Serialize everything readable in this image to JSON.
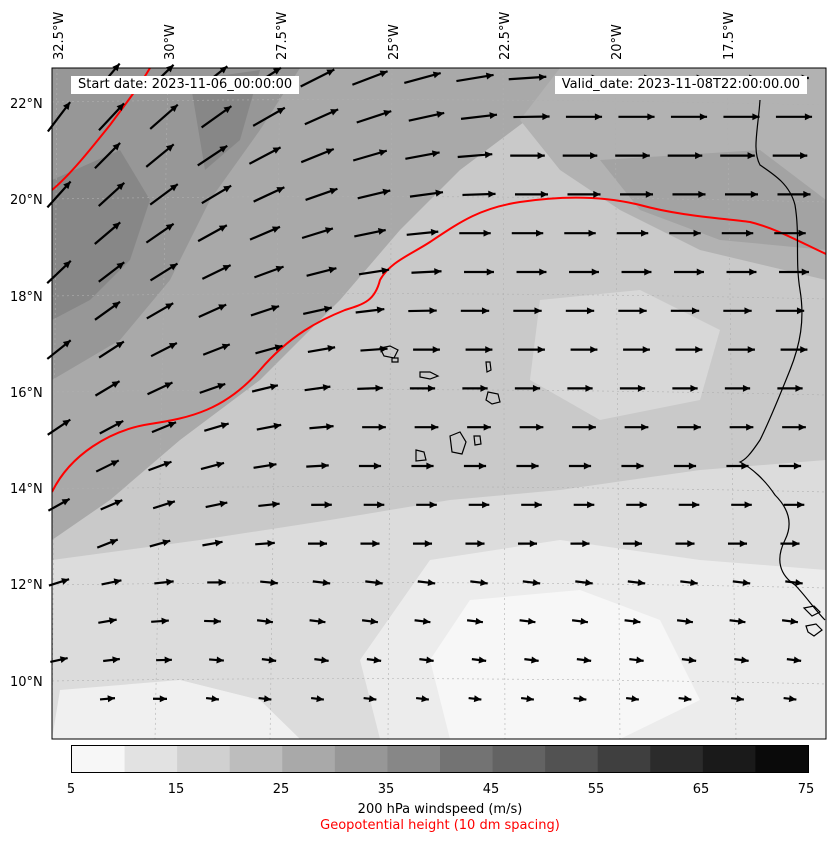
{
  "info": {
    "start_date": "Start date: 2023-11-06_00:00:00",
    "valid_date": "Valid_date: 2023-11-08T22:00:00.00"
  },
  "longitude_labels": [
    "32.5°W",
    "30°W",
    "27.5°W",
    "25°W",
    "22.5°W",
    "20°W",
    "17.5°W"
  ],
  "latitude_labels": [
    "22°N",
    "20°N",
    "18°N",
    "16°N",
    "14°N",
    "12°N",
    "10°N"
  ],
  "colorbar": {
    "ticks": [
      "5",
      "15",
      "25",
      "35",
      "45",
      "55",
      "65",
      "75"
    ],
    "label": "200 hPa windspeed (m/s)",
    "sublabel": "Geopotential height (10 dm spacing)",
    "colors": [
      "#f7f7f7",
      "#e2e2e2",
      "#d0d0d0",
      "#bdbdbd",
      "#a9a9a9",
      "#979797",
      "#878787",
      "#737373",
      "#636363",
      "#525252",
      "#3f3f3f",
      "#2b2b2b",
      "#1a1a1a",
      "#0a0a0a"
    ]
  },
  "colors": {
    "geopotential_contour": "#ff0000",
    "sublabel_text": "#ff0000",
    "coastline": "#000000",
    "wind_vector": "#000000"
  }
}
